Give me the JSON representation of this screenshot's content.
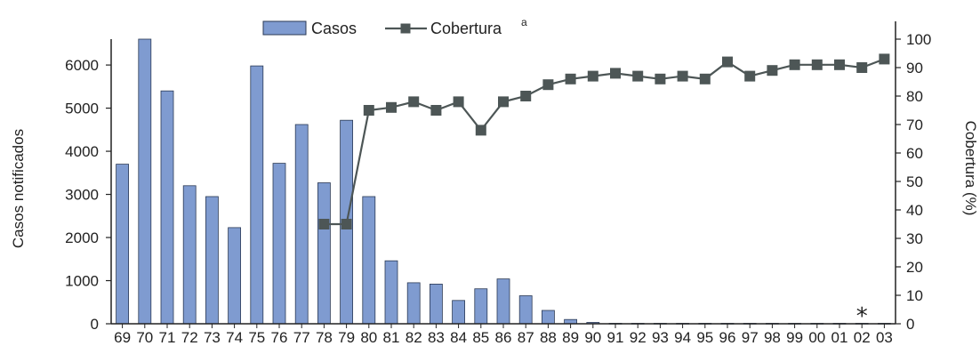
{
  "chart_data": {
    "type": "bar",
    "categories": [
      "69",
      "70",
      "71",
      "72",
      "73",
      "74",
      "75",
      "76",
      "77",
      "78",
      "79",
      "80",
      "81",
      "82",
      "83",
      "84",
      "85",
      "86",
      "87",
      "88",
      "89",
      "90",
      "91",
      "92",
      "93",
      "94",
      "95",
      "96",
      "97",
      "98",
      "99",
      "00",
      "01",
      "02",
      "03"
    ],
    "series": [
      {
        "name": "Casos",
        "type": "bar",
        "axis": "left",
        "values": [
          3700,
          6600,
          5400,
          3200,
          2950,
          2230,
          5980,
          3720,
          4620,
          3270,
          4720,
          2950,
          1460,
          950,
          920,
          540,
          810,
          1040,
          650,
          310,
          100,
          30,
          10,
          10,
          10,
          10,
          10,
          10,
          10,
          10,
          10,
          10,
          10,
          10,
          10
        ]
      },
      {
        "name": "Cobertura",
        "name_superscript": "a",
        "type": "line",
        "axis": "right",
        "x": [
          "78",
          "79",
          "80",
          "81",
          "82",
          "83",
          "84",
          "85",
          "86",
          "87",
          "88",
          "89",
          "90",
          "91",
          "92",
          "93",
          "94",
          "95",
          "96",
          "97",
          "98",
          "99",
          "00",
          "01",
          "02",
          "03"
        ],
        "values": [
          35,
          35,
          75,
          76,
          78,
          75,
          78,
          68,
          78,
          80,
          84,
          86,
          87,
          88,
          87,
          86,
          87,
          86,
          92,
          87,
          89,
          91,
          91,
          91,
          90,
          93
        ]
      }
    ],
    "annotation": "*",
    "annotation_category": "02",
    "ylabel": "Casos notificados",
    "ylim": [
      0,
      6600
    ],
    "yticks": [
      0,
      1000,
      2000,
      3000,
      4000,
      5000,
      6000
    ],
    "y2label": "Cobertura (%)",
    "y2lim": [
      0,
      100
    ],
    "y2ticks": [
      0,
      10,
      20,
      30,
      40,
      50,
      60,
      70,
      80,
      90,
      100
    ],
    "legend_position": "top-center",
    "grid": false,
    "colors": {
      "bar_fill": "#7f9bd0",
      "bar_stroke": "#2b3a55",
      "line": "#4d5656",
      "marker": "#4d5656",
      "axis": "#222222"
    }
  }
}
